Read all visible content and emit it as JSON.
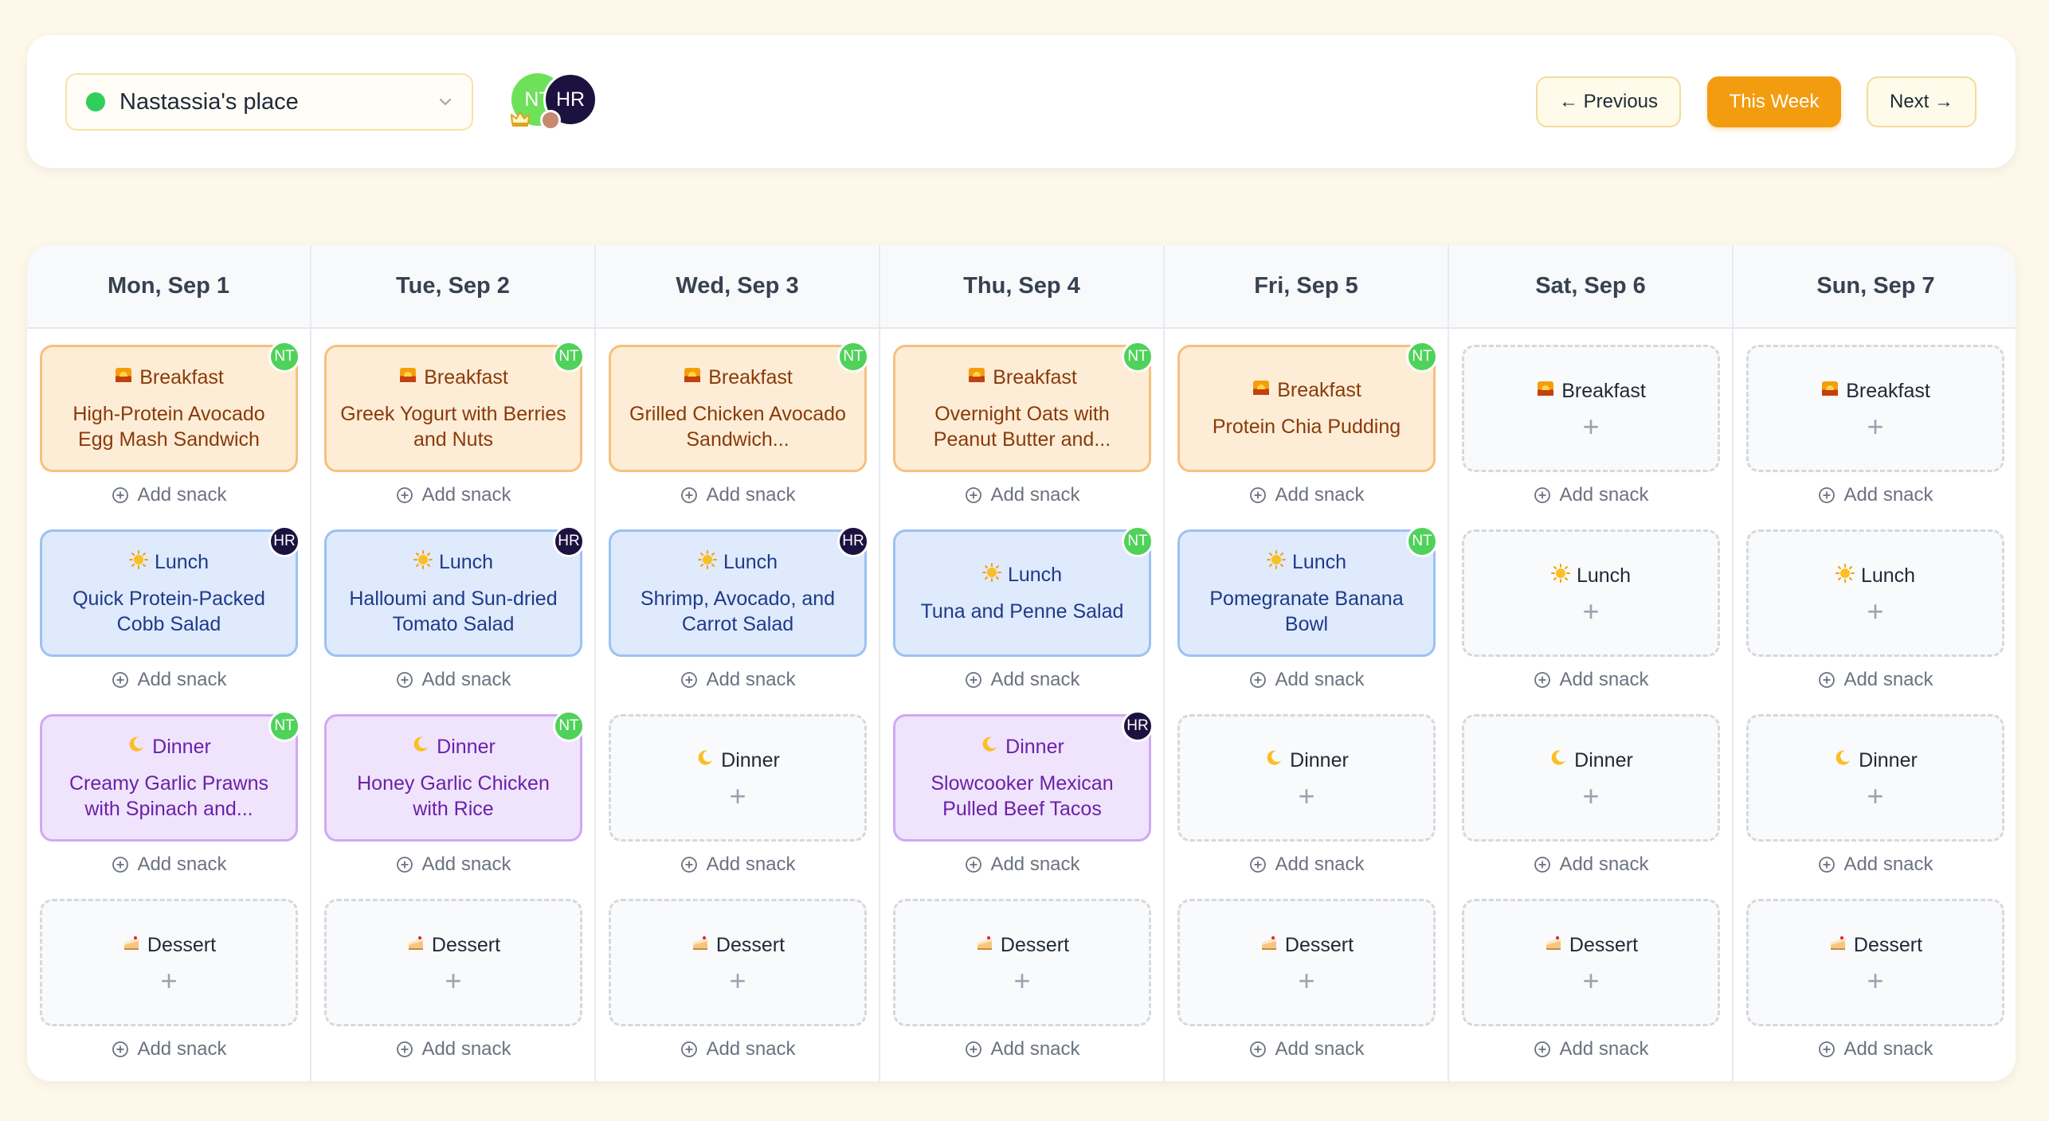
{
  "household": {
    "name": "Nastassia's place",
    "status_color": "#2fcf5a"
  },
  "members": [
    {
      "initials": "NT",
      "color": "#6ee05a",
      "role": "owner"
    },
    {
      "initials": "HR",
      "color": "#1c1240",
      "role": "chef"
    }
  ],
  "nav": {
    "previous": "← Previous",
    "this_week": "This Week",
    "next": "Next →"
  },
  "add_snack_label": "Add snack",
  "meal_types": {
    "breakfast": "Breakfast",
    "lunch": "Lunch",
    "dinner": "Dinner",
    "dessert": "Dessert"
  },
  "days": [
    {
      "label": "Mon, Sep 1",
      "breakfast": {
        "recipe": "High-Protein Avocado Egg Mash Sandwich",
        "assignee": "NT"
      },
      "lunch": {
        "recipe": "Quick Protein-Packed Cobb Salad",
        "assignee": "HR"
      },
      "dinner": {
        "recipe": "Creamy Garlic Prawns with Spinach and...",
        "assignee": "NT"
      },
      "dessert": null
    },
    {
      "label": "Tue, Sep 2",
      "breakfast": {
        "recipe": "Greek Yogurt with Berries and Nuts",
        "assignee": "NT"
      },
      "lunch": {
        "recipe": "Halloumi and Sun-dried Tomato Salad",
        "assignee": "HR"
      },
      "dinner": {
        "recipe": "Honey Garlic Chicken with Rice",
        "assignee": "NT"
      },
      "dessert": null
    },
    {
      "label": "Wed, Sep 3",
      "breakfast": {
        "recipe": "Grilled Chicken Avocado Sandwich...",
        "assignee": "NT"
      },
      "lunch": {
        "recipe": "Shrimp, Avocado, and Carrot Salad",
        "assignee": "HR"
      },
      "dinner": null,
      "dessert": null
    },
    {
      "label": "Thu, Sep 4",
      "breakfast": {
        "recipe": "Overnight Oats with Peanut Butter and...",
        "assignee": "NT"
      },
      "lunch": {
        "recipe": "Tuna and Penne Salad",
        "assignee": "NT"
      },
      "dinner": {
        "recipe": "Slowcooker Mexican Pulled Beef Tacos",
        "assignee": "HR"
      },
      "dessert": null
    },
    {
      "label": "Fri, Sep 5",
      "breakfast": {
        "recipe": "Protein Chia Pudding",
        "assignee": "NT"
      },
      "lunch": {
        "recipe": "Pomegranate Banana Bowl",
        "assignee": "NT"
      },
      "dinner": null,
      "dessert": null
    },
    {
      "label": "Sat, Sep 6",
      "breakfast": null,
      "lunch": null,
      "dinner": null,
      "dessert": null
    },
    {
      "label": "Sun, Sep 7",
      "breakfast": null,
      "lunch": null,
      "dinner": null,
      "dessert": null
    }
  ],
  "colors": {
    "accent": "#f39c10",
    "breakfast": "#fdedd6",
    "lunch": "#dfeafc",
    "dinner": "#efe4fc",
    "assignee_nt": "#4fd25a",
    "assignee_hr": "#1c1240"
  },
  "icons": {
    "breakfast": "sunrise-icon",
    "lunch": "sun-icon",
    "dinner": "moon-icon",
    "dessert": "cake-icon",
    "add_snack": "plus-circle-icon",
    "dropdown": "chevron-down-icon"
  }
}
